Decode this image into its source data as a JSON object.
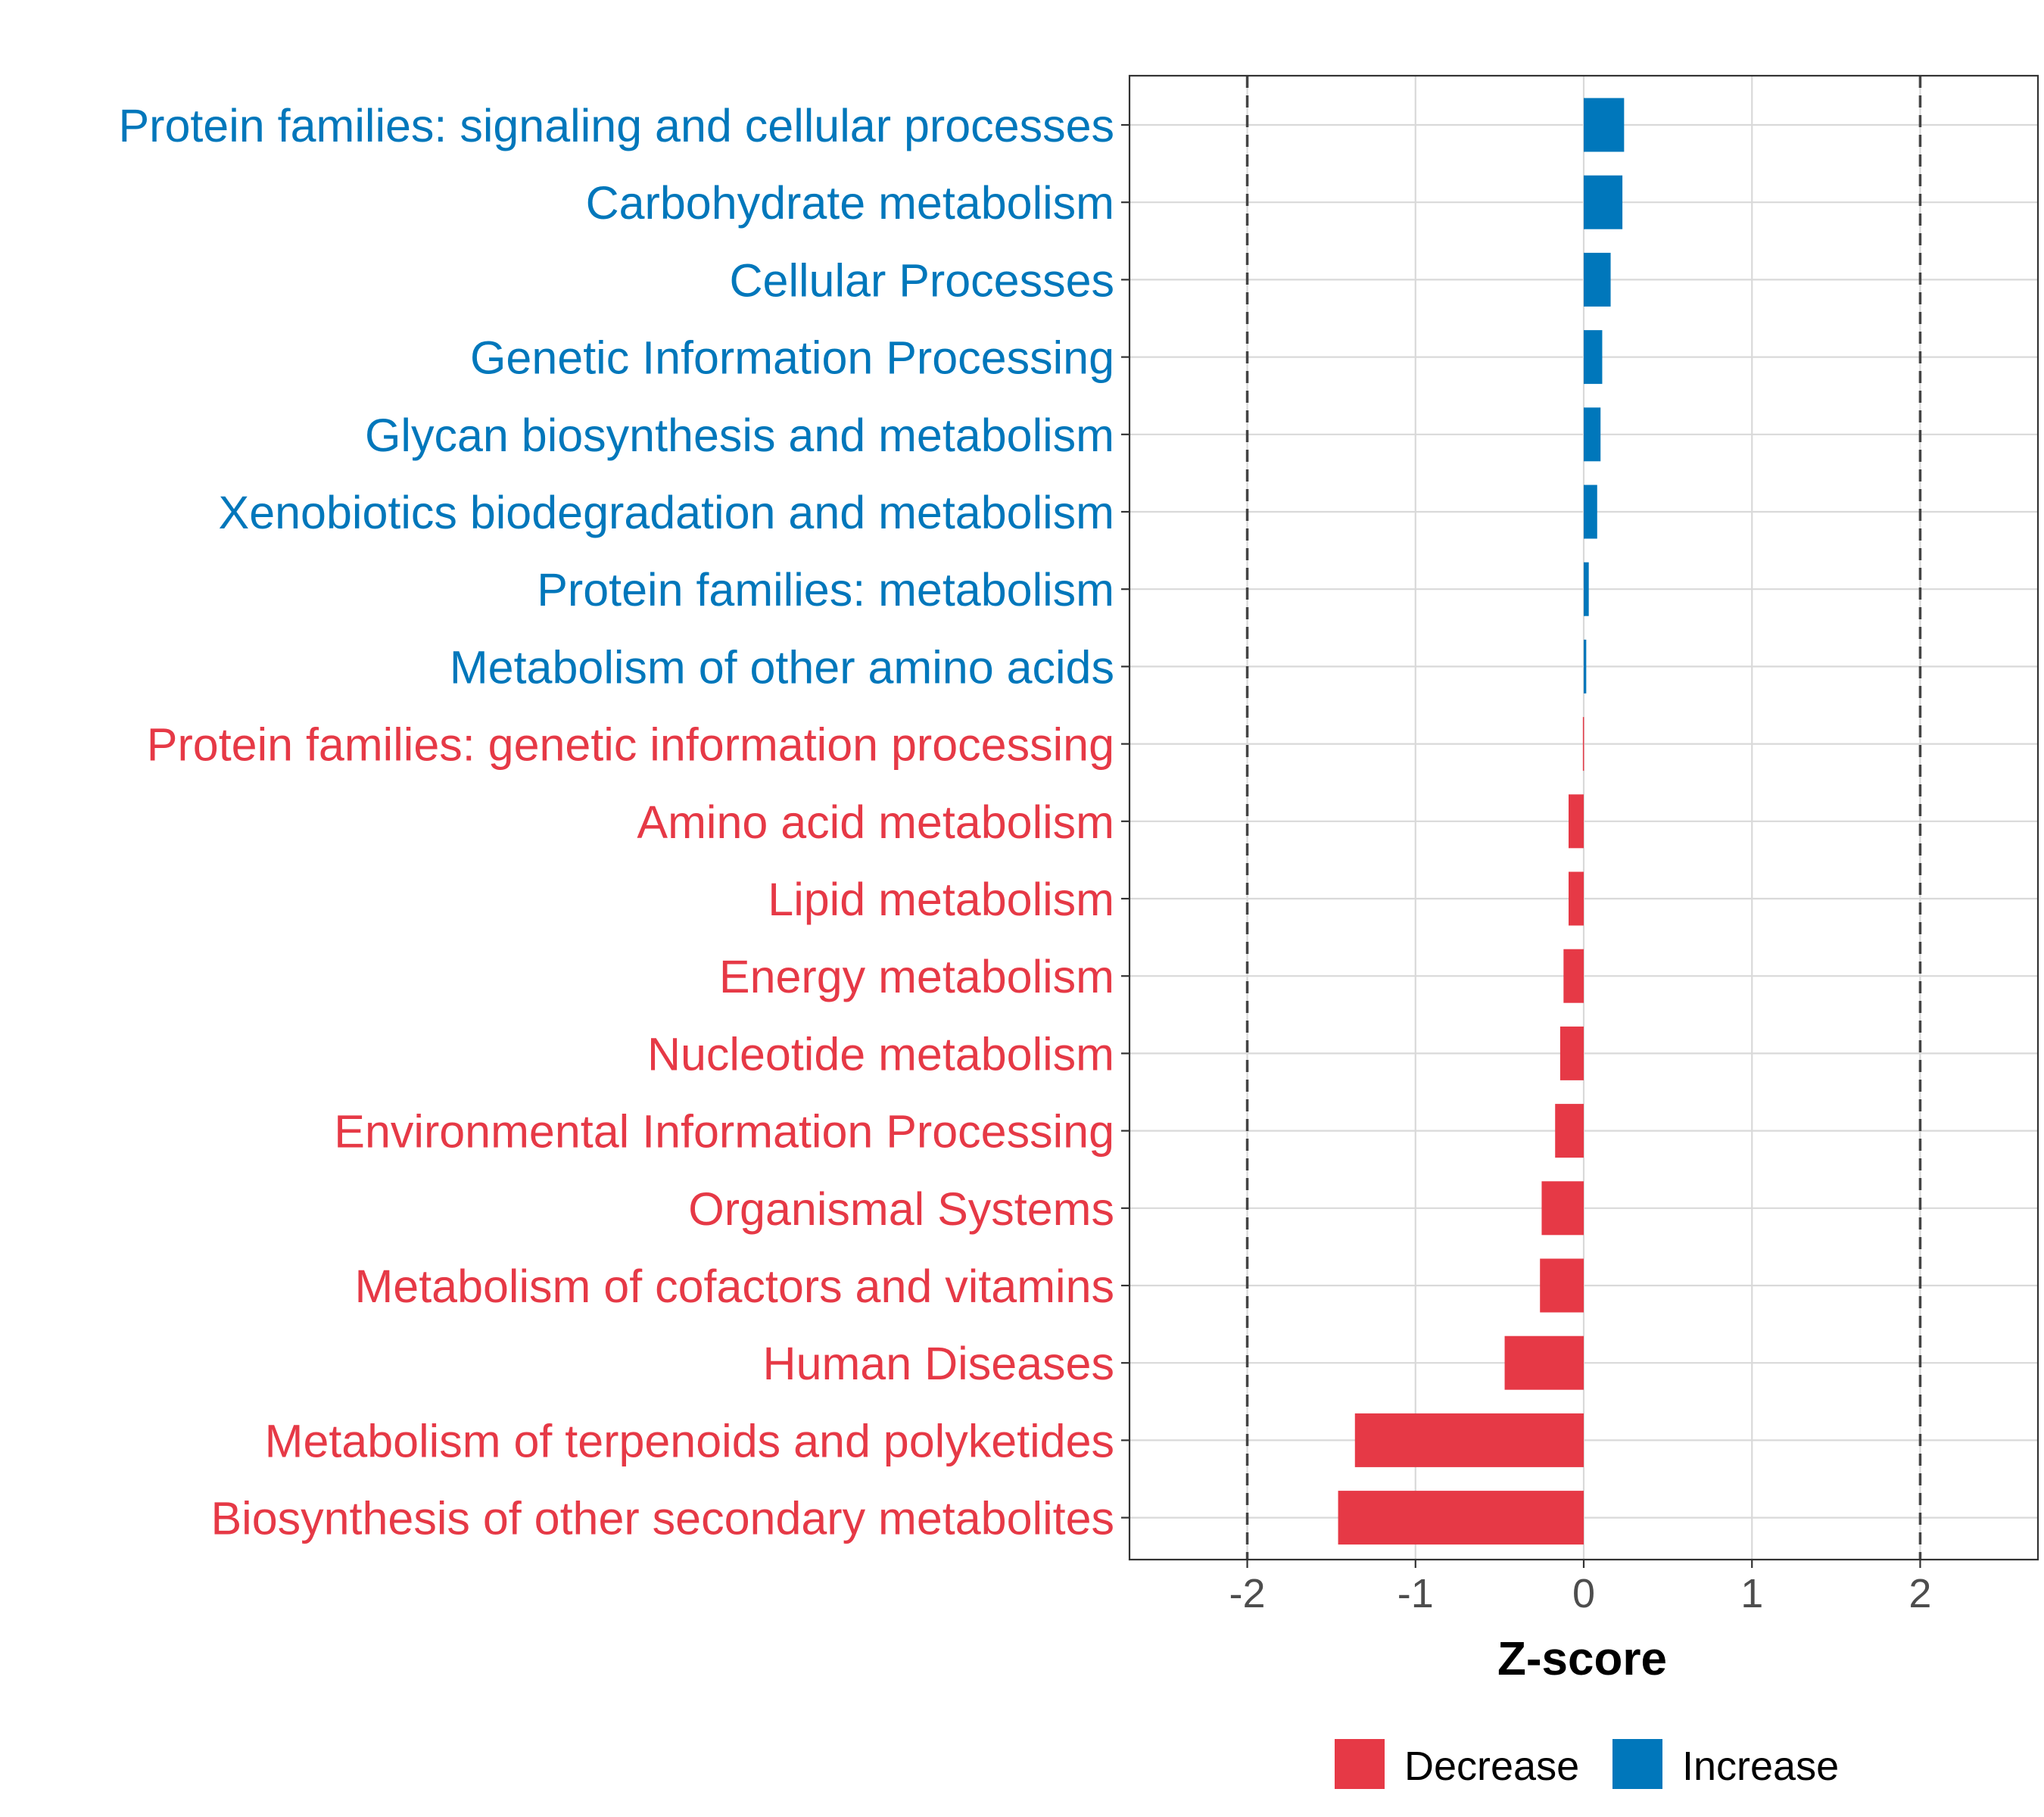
{
  "chart_data": {
    "type": "bar",
    "orientation": "horizontal",
    "xlabel": "Z-score",
    "ylabel": "",
    "xlim": [
      -2.7,
      2.7
    ],
    "x_ticks": [
      "-2",
      "-1",
      "0",
      "1",
      "2"
    ],
    "x_tick_values": [
      -2,
      -1,
      0,
      1,
      2
    ],
    "reference_lines": [
      -2,
      2
    ],
    "grid": true,
    "legend_position": "bottom",
    "colors": {
      "Decrease": "#E63946",
      "Increase": "#0077BB"
    },
    "legend": [
      {
        "label": "Decrease",
        "color": "#E63946"
      },
      {
        "label": "Increase",
        "color": "#0077BB"
      }
    ],
    "categories": [
      "Protein families: signaling and cellular processes",
      "Carbohydrate metabolism",
      "Cellular Processes",
      "Genetic Information Processing",
      "Glycan biosynthesis and metabolism",
      "Xenobiotics biodegradation and metabolism",
      "Protein families: metabolism",
      "Metabolism of other amino acids",
      "Protein families: genetic information processing",
      "Amino acid metabolism",
      "Lipid metabolism",
      "Energy metabolism",
      "Nucleotide metabolism",
      "Environmental Information Processing",
      "Organismal Systems",
      "Metabolism of cofactors and vitamins",
      "Human Diseases",
      "Metabolism of terpenoids and polyketides",
      "Biosynthesis of other secondary metabolites"
    ],
    "values": [
      0.24,
      0.23,
      0.16,
      0.11,
      0.1,
      0.08,
      0.03,
      0.015,
      -0.005,
      -0.09,
      -0.09,
      -0.12,
      -0.14,
      -0.17,
      -0.25,
      -0.26,
      -0.47,
      -1.36,
      -1.46
    ],
    "groups": [
      "Increase",
      "Increase",
      "Increase",
      "Increase",
      "Increase",
      "Increase",
      "Increase",
      "Increase",
      "Decrease",
      "Decrease",
      "Decrease",
      "Decrease",
      "Decrease",
      "Decrease",
      "Decrease",
      "Decrease",
      "Decrease",
      "Decrease",
      "Decrease"
    ]
  }
}
